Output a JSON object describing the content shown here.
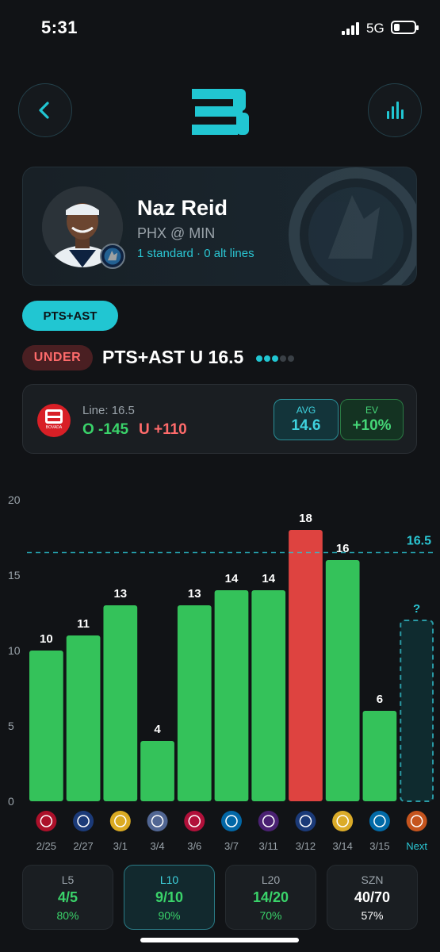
{
  "status_bar": {
    "time": "5:31",
    "network": "5G",
    "battery_level": 0.3
  },
  "nav": {
    "back_icon": "chevron-left-icon",
    "stats_icon": "bar-chart-icon",
    "logo_icon": "app-logo-icon"
  },
  "player": {
    "name": "Naz Reid",
    "matchup": "PHX @ MIN",
    "lines_info": "1 standard · 0 alt lines",
    "team_badge_icon": "timberwolves-logo-icon",
    "watermark_text": "MINNESOTA TIMBERWOLVES"
  },
  "stat_tab": {
    "label": "PTS+AST"
  },
  "pick": {
    "side": "UNDER",
    "title": "PTS+AST U 16.5",
    "dots_active": 3,
    "dots_total": 5
  },
  "odds": {
    "book_icon": "bovada-logo-icon",
    "book_name": "BOVADA",
    "line_label": "Line: 16.5",
    "over": "O -145",
    "under": "U +110",
    "avg_label": "AVG",
    "avg_value": "14.6",
    "ev_label": "EV",
    "ev_value": "+10%"
  },
  "colors": {
    "accent": "#21c6d2",
    "green": "#34c25a",
    "red": "#de4340",
    "under_text": "#ff6b6b"
  },
  "chart_data": {
    "type": "bar",
    "ylim": [
      0,
      20
    ],
    "yticks": [
      "0",
      "5",
      "10",
      "15",
      "20"
    ],
    "line_value": 16.5,
    "line_label": "16.5",
    "categories": [
      "2/25",
      "2/27",
      "3/1",
      "3/4",
      "3/6",
      "3/7",
      "3/11",
      "3/12",
      "3/14",
      "3/15",
      "Next"
    ],
    "values": [
      10,
      11,
      13,
      4,
      13,
      14,
      14,
      18,
      16,
      6,
      null
    ],
    "value_labels": [
      "10",
      "11",
      "13",
      "4",
      "13",
      "14",
      "14",
      "18",
      "16",
      "6",
      "?"
    ],
    "colors": [
      "green",
      "green",
      "green",
      "green",
      "green",
      "green",
      "green",
      "red",
      "green",
      "green",
      "pending"
    ],
    "opponent_icons": [
      "trail-blazers-logo-icon",
      "clippers-logo-icon",
      "nuggets-logo-icon",
      "grizzlies-logo-icon",
      "raptors-logo-icon",
      "magic-logo-icon",
      "lakers-logo-icon",
      "clippers-logo-icon",
      "warriors-logo-icon",
      "thunder-logo-icon",
      "suns-logo-icon"
    ],
    "opponent_icon_colors": [
      "#c8102e",
      "#1d428a",
      "#fec524",
      "#5d76a9",
      "#ce1141",
      "#0077c0",
      "#552583",
      "#1d428a",
      "#ffc72c",
      "#007ac1",
      "#e56020"
    ]
  },
  "summary": [
    {
      "label": "L5",
      "record": "4/5",
      "pct": "80%",
      "active": false
    },
    {
      "label": "L10",
      "record": "9/10",
      "pct": "90%",
      "active": true
    },
    {
      "label": "L20",
      "record": "14/20",
      "pct": "70%",
      "active": false
    },
    {
      "label": "SZN",
      "record": "40/70",
      "pct": "57%",
      "active": false
    }
  ]
}
